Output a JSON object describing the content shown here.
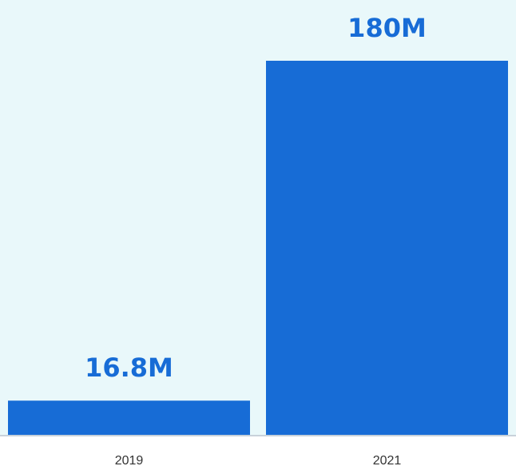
{
  "chart_data": {
    "type": "bar",
    "categories": [
      "2019",
      "2021"
    ],
    "values": [
      16.8,
      180
    ],
    "data_labels": [
      "16.8M",
      "180M"
    ],
    "title": "",
    "xlabel": "",
    "ylabel": "",
    "grid": false,
    "legend": "none",
    "bar_color": "#176cd6",
    "label_color": "#176cd6",
    "plot_background": "#e9f8fa",
    "axis_line_color": "#c8d2da",
    "tick_label_color": "#333333"
  }
}
